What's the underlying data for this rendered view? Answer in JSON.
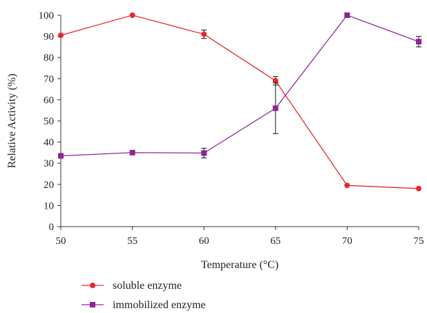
{
  "chart_data": {
    "type": "line",
    "title": "",
    "xlabel": "Temperature (°C)",
    "ylabel": "Relative Activity (%)",
    "x": [
      50,
      55,
      60,
      65,
      70,
      75
    ],
    "xlim": [
      50,
      75
    ],
    "ylim": [
      0,
      100
    ],
    "xticks": [
      "50",
      "55",
      "60",
      "65",
      "70",
      "75"
    ],
    "yticks": [
      "0",
      "10",
      "20",
      "30",
      "40",
      "50",
      "60",
      "70",
      "80",
      "90",
      "100"
    ],
    "grid": false,
    "legend_position": "bottom-left",
    "series": [
      {
        "name": "soluble enzyme",
        "values": [
          90.5,
          100,
          91,
          69,
          19.5,
          18
        ],
        "error": [
          0,
          0,
          2,
          2,
          0,
          0
        ],
        "color": "#e8262a",
        "marker": "circle"
      },
      {
        "name": "immobilized enzyme",
        "values": [
          33.5,
          35,
          34.8,
          56,
          100,
          87.5
        ],
        "error": [
          0,
          0,
          2.3,
          12,
          0,
          2.5
        ],
        "color": "#8e2596",
        "marker": "square"
      }
    ]
  }
}
